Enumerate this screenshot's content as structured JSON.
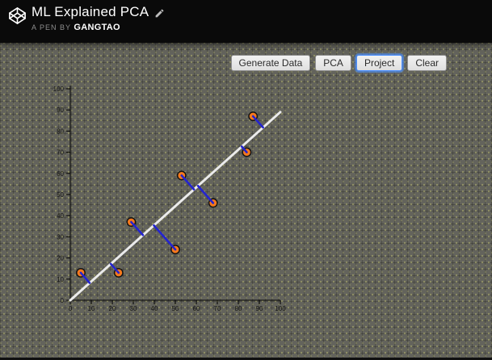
{
  "header": {
    "title": "ML Explained PCA",
    "byline_prefix": "A PEN BY",
    "author": "gangtao"
  },
  "toolbar": {
    "buttons": [
      {
        "label": "Generate Data",
        "active": false
      },
      {
        "label": "PCA",
        "active": false
      },
      {
        "label": "Project",
        "active": true
      },
      {
        "label": "Clear",
        "active": false
      }
    ]
  },
  "icons": {
    "logo": "codepen-logo",
    "edit": "pencil-icon"
  },
  "colors": {
    "header_bg": "#0a0a0a",
    "page_bg": "#63635c",
    "point_fill": "#f5791d",
    "point_stroke": "#141414",
    "projection_line": "#2424cf",
    "pc_line": "#ebebeb",
    "axis": "#000000",
    "button_focus_ring": "#4d90fe"
  },
  "chart_data": {
    "type": "scatter",
    "title": "",
    "xlabel": "",
    "ylabel": "",
    "xlim": [
      0,
      100
    ],
    "ylim": [
      0,
      100
    ],
    "xticks": [
      0,
      10,
      20,
      30,
      40,
      50,
      60,
      70,
      80,
      90,
      100
    ],
    "yticks": [
      0,
      10,
      20,
      30,
      40,
      50,
      60,
      70,
      80,
      90,
      100
    ],
    "grid": false,
    "legend": false,
    "points": [
      [
        5,
        13
      ],
      [
        23,
        13
      ],
      [
        29,
        37
      ],
      [
        50,
        24
      ],
      [
        53,
        59
      ],
      [
        68,
        46
      ],
      [
        84,
        70
      ],
      [
        87,
        87
      ]
    ],
    "principal_component_line": [
      [
        0,
        0
      ],
      [
        100,
        89
      ]
    ],
    "projections": [
      [
        [
          5,
          13
        ],
        [
          9.2,
          8.2
        ]
      ],
      [
        [
          23,
          13
        ],
        [
          19.3,
          17.2
        ]
      ],
      [
        [
          29,
          37
        ],
        [
          34.6,
          30.8
        ]
      ],
      [
        [
          50,
          24
        ],
        [
          39.8,
          35.4
        ]
      ],
      [
        [
          53,
          59
        ],
        [
          58.9,
          52.4
        ]
      ],
      [
        [
          68,
          46
        ],
        [
          60.8,
          54.1
        ]
      ],
      [
        [
          84,
          70
        ],
        [
          81.6,
          72.7
        ]
      ],
      [
        [
          87,
          87
        ],
        [
          91.8,
          81.7
        ]
      ]
    ]
  }
}
